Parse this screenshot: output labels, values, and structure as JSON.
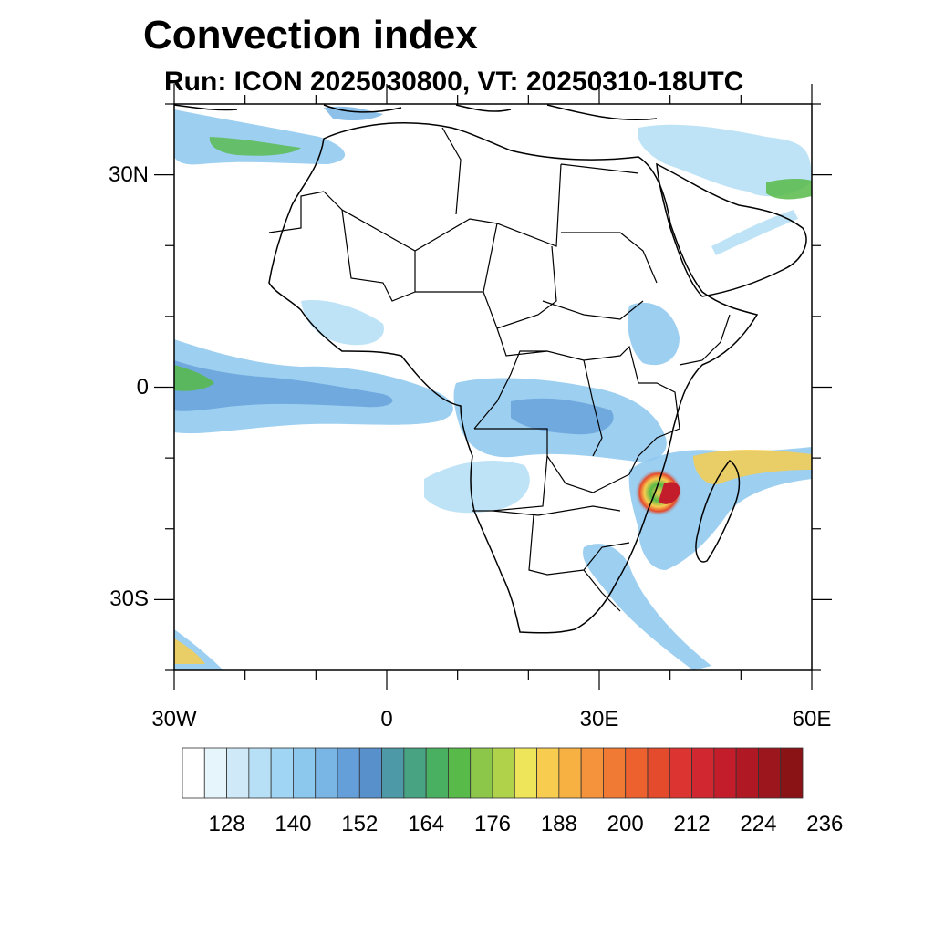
{
  "header": {
    "title": "Convection index",
    "subtitle": "Run: ICON 2025030800,  VT: 20250310-18UTC"
  },
  "map": {
    "lon_range": [
      -30,
      60
    ],
    "lat_range": [
      -40,
      40
    ],
    "lat_ticks": [
      {
        "lat": 30,
        "label": "30N"
      },
      {
        "lat": 0,
        "label": "0"
      },
      {
        "lat": -30,
        "label": "30S"
      }
    ],
    "lon_ticks": [
      {
        "lon": -30,
        "label": "30W"
      },
      {
        "lon": 0,
        "label": "0"
      },
      {
        "lon": 30,
        "label": "30E"
      },
      {
        "lon": 60,
        "label": "60E"
      }
    ]
  },
  "colorbar": {
    "labels": [
      "128",
      "140",
      "152",
      "164",
      "176",
      "188",
      "200",
      "212",
      "224",
      "236"
    ],
    "colors": [
      "#ffffff",
      "#e6f4fc",
      "#cfe9f8",
      "#b7e0f6",
      "#a0d6f4",
      "#8cc7ee",
      "#79b6e6",
      "#649fd9",
      "#5890cc",
      "#4d99a7",
      "#48a383",
      "#49b061",
      "#58ba48",
      "#8cc74a",
      "#b0d24b",
      "#eee55a",
      "#f7cc4f",
      "#f7b143",
      "#f4933b",
      "#f07a34",
      "#ec612d",
      "#e44a2c",
      "#dc3430",
      "#d02731",
      "#c31d2b",
      "#b01923",
      "#9c161d",
      "#8a1316"
    ]
  },
  "key_features": {
    "cyclone_center": {
      "lon": 37.5,
      "lat": -15.5,
      "label": ""
    }
  }
}
